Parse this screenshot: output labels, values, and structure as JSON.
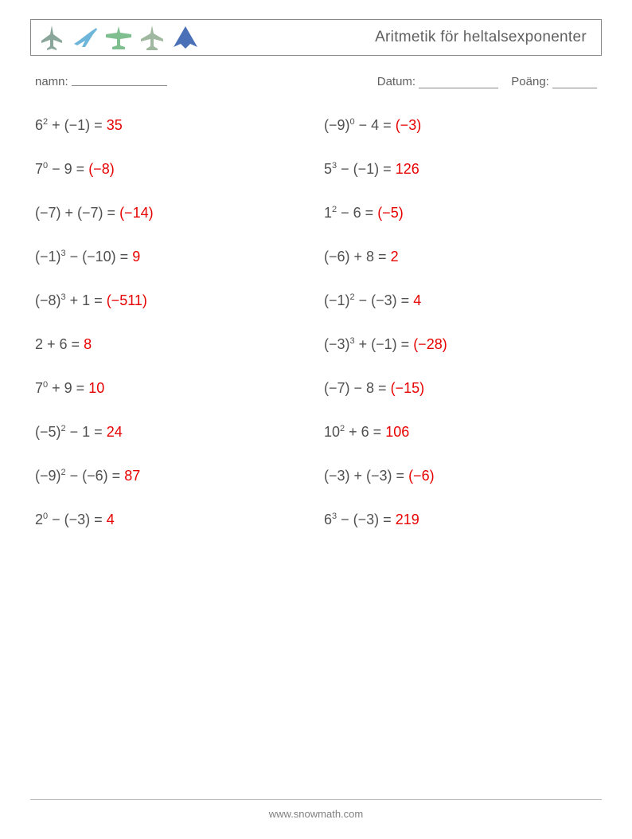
{
  "header": {
    "title": "Aritmetik för heltalsexponenter",
    "icon_colors": {
      "jet": "#8aa69a",
      "airliner": "#6db5d9",
      "biplane": "#7fbf8f",
      "prop": "#9fb89f",
      "stealth": "#4a70b8"
    }
  },
  "meta": {
    "name_label": "namn:",
    "date_label": "Datum:",
    "score_label": "Poäng:"
  },
  "text_color": "#505050",
  "answer_color": "#e70000",
  "problems": {
    "left": [
      {
        "base": "6",
        "exp": "2",
        "op": "+",
        "b": "(−1)",
        "ans": "35",
        "ans_neg": false
      },
      {
        "base": "7",
        "exp": "0",
        "op": "−",
        "b": "9",
        "ans": "(−8)",
        "ans_neg": true
      },
      {
        "base": "(−7)",
        "exp": "",
        "op": "+",
        "b": "(−7)",
        "ans": "(−14)",
        "ans_neg": true
      },
      {
        "base": "(−1)",
        "exp": "3",
        "op": "−",
        "b": "(−10)",
        "ans": "9",
        "ans_neg": false
      },
      {
        "base": "(−8)",
        "exp": "3",
        "op": "+",
        "b": "1",
        "ans": "(−511)",
        "ans_neg": true
      },
      {
        "base": "2",
        "exp": "",
        "op": "+",
        "b": "6",
        "ans": "8",
        "ans_neg": false
      },
      {
        "base": "7",
        "exp": "0",
        "op": "+",
        "b": "9",
        "ans": "10",
        "ans_neg": false
      },
      {
        "base": "(−5)",
        "exp": "2",
        "op": "−",
        "b": "1",
        "ans": "24",
        "ans_neg": false
      },
      {
        "base": "(−9)",
        "exp": "2",
        "op": "−",
        "b": "(−6)",
        "ans": "87",
        "ans_neg": false
      },
      {
        "base": "2",
        "exp": "0",
        "op": "−",
        "b": "(−3)",
        "ans": "4",
        "ans_neg": false
      }
    ],
    "right": [
      {
        "base": "(−9)",
        "exp": "0",
        "op": "−",
        "b": "4",
        "ans": "(−3)",
        "ans_neg": true
      },
      {
        "base": "5",
        "exp": "3",
        "op": "−",
        "b": "(−1)",
        "ans": "126",
        "ans_neg": false
      },
      {
        "base": "1",
        "exp": "2",
        "op": "−",
        "b": "6",
        "ans": "(−5)",
        "ans_neg": true
      },
      {
        "base": "(−6)",
        "exp": "",
        "op": "+",
        "b": "8",
        "ans": "2",
        "ans_neg": false
      },
      {
        "base": "(−1)",
        "exp": "2",
        "op": "−",
        "b": "(−3)",
        "ans": "4",
        "ans_neg": false
      },
      {
        "base": "(−3)",
        "exp": "3",
        "op": "+",
        "b": "(−1)",
        "ans": "(−28)",
        "ans_neg": true
      },
      {
        "base": "(−7)",
        "exp": "",
        "op": "−",
        "b": "8",
        "ans": "(−15)",
        "ans_neg": true
      },
      {
        "base": "10",
        "exp": "2",
        "op": "+",
        "b": "6",
        "ans": "106",
        "ans_neg": false
      },
      {
        "base": "(−3)",
        "exp": "",
        "op": "+",
        "b": "(−3)",
        "ans": "(−6)",
        "ans_neg": true
      },
      {
        "base": "6",
        "exp": "3",
        "op": "−",
        "b": "(−3)",
        "ans": "219",
        "ans_neg": false
      }
    ]
  },
  "footer": {
    "url": "www.snowmath.com"
  }
}
